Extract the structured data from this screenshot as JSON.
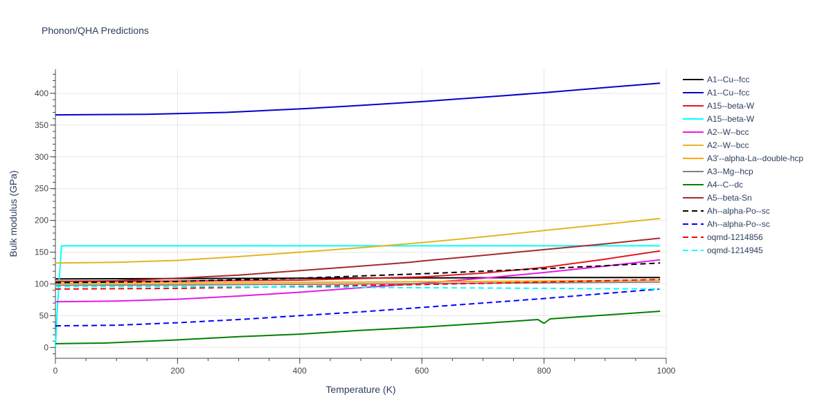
{
  "title": "Phonon/QHA Predictions",
  "chart_data": {
    "type": "line",
    "xlabel": "Temperature (K)",
    "ylabel": "Bulk modulus (GPa)",
    "xlim": [
      0,
      1000
    ],
    "ylim": [
      -17,
      438
    ],
    "xticks": [
      0,
      200,
      400,
      600,
      800,
      1000
    ],
    "yticks": [
      0,
      50,
      100,
      150,
      200,
      250,
      300,
      350,
      400
    ],
    "grid": true,
    "legend_position": "right",
    "series": [
      {
        "name": "A1--Cu--fcc",
        "color": "#000000",
        "dash": "solid",
        "x": [
          0,
          200,
          400,
          600,
          800,
          990
        ],
        "y": [
          108,
          108.5,
          109,
          109.5,
          110,
          110
        ]
      },
      {
        "name": "A1--Cu--fcc",
        "color": "#0000cc",
        "dash": "solid",
        "x": [
          0,
          150,
          280,
          410,
          500,
          600,
          730,
          800,
          900,
          990
        ],
        "y": [
          366,
          367,
          370,
          376,
          381,
          387,
          396,
          401,
          409,
          416
        ]
      },
      {
        "name": "A15--beta-W",
        "color": "#e6141e",
        "dash": "solid",
        "x": [
          0,
          200,
          400,
          600,
          700,
          800,
          900,
          990
        ],
        "y": [
          104,
          104.5,
          106,
          111,
          117,
          126,
          139,
          152
        ]
      },
      {
        "name": "A15--beta-W",
        "color": "#00ffff",
        "dash": "solid",
        "x": [
          0,
          3,
          10,
          100,
          400,
          700,
          990
        ],
        "y": [
          0,
          58,
          160,
          160,
          160,
          160,
          160
        ]
      },
      {
        "name": "A2--W--bcc",
        "color": "#e619e6",
        "dash": "solid",
        "x": [
          0,
          100,
          200,
          300,
          400,
          500,
          600,
          700,
          800,
          900,
          990
        ],
        "y": [
          72,
          73,
          76,
          81,
          87,
          94,
          101,
          109,
          118,
          128,
          138
        ]
      },
      {
        "name": "A2--W--bcc",
        "color": "#e6b41e",
        "dash": "solid",
        "x": [
          0,
          100,
          200,
          300,
          400,
          500,
          600,
          700,
          800,
          900,
          990
        ],
        "y": [
          133,
          134,
          137,
          143,
          150,
          157,
          165,
          174,
          184,
          194,
          203
        ]
      },
      {
        "name": "A3'--alpha-La--double-hcp",
        "color": "#ffa500",
        "dash": "solid",
        "x": [
          0,
          200,
          400,
          600,
          800,
          990
        ],
        "y": [
          101,
          101.5,
          102.5,
          103.5,
          104.5,
          106
        ]
      },
      {
        "name": "A3--Mg--hcp",
        "color": "#808080",
        "dash": "solid",
        "x": [
          0,
          200,
          400,
          600,
          800,
          990
        ],
        "y": [
          98,
          98.5,
          99.5,
          100.5,
          102,
          103
        ]
      },
      {
        "name": "A4--C--dc",
        "color": "#008000",
        "dash": "solid",
        "x": [
          0,
          80,
          200,
          300,
          400,
          500,
          600,
          700,
          790,
          800,
          810,
          900,
          990
        ],
        "y": [
          6,
          7,
          12,
          17,
          21,
          27,
          32,
          38,
          44,
          38,
          45,
          51,
          57
        ]
      },
      {
        "name": "A5--beta-Sn",
        "color": "#a52a2a",
        "dash": "solid",
        "x": [
          0,
          100,
          200,
          300,
          400,
          500,
          580,
          600,
          700,
          800,
          900,
          990
        ],
        "y": [
          104,
          105,
          109,
          114,
          121,
          128,
          134,
          136,
          145,
          154,
          163,
          172
        ]
      },
      {
        "name": "Ah--alpha-Po--sc",
        "color": "#000000",
        "dash": "dash",
        "x": [
          0,
          200,
          400,
          600,
          800,
          990
        ],
        "y": [
          102,
          104,
          109,
          116,
          124,
          133
        ]
      },
      {
        "name": "Ah--alpha-Po--sc",
        "color": "#0000ff",
        "dash": "dash",
        "x": [
          0,
          100,
          200,
          300,
          400,
          500,
          600,
          700,
          800,
          900,
          990
        ],
        "y": [
          34,
          35,
          39,
          44,
          50,
          56,
          63,
          70,
          77,
          85,
          92
        ]
      },
      {
        "name": "oqmd-1214856",
        "color": "#ff0000",
        "dash": "dash",
        "x": [
          0,
          200,
          400,
          600,
          800,
          990
        ],
        "y": [
          92,
          93,
          96,
          99,
          103,
          107
        ]
      },
      {
        "name": "oqmd-1214945",
        "color": "#00ffff",
        "dash": "dash",
        "x": [
          0,
          200,
          400,
          600,
          800,
          990
        ],
        "y": [
          96,
          96,
          95,
          94,
          93,
          92
        ]
      }
    ]
  }
}
